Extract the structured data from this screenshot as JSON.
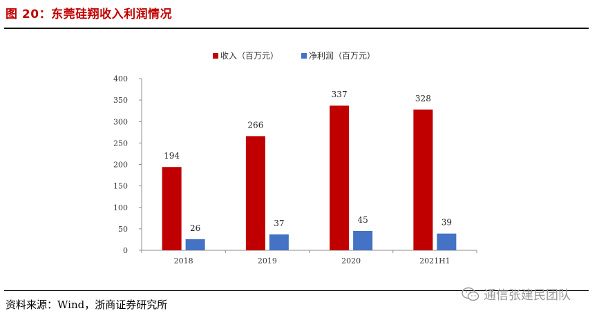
{
  "figure": {
    "title": "图 20：东莞硅翔收入利润情况",
    "source": "资料来源：Wind，浙商证券研究所",
    "watermark": "通信张建民团队",
    "watermark_icon": "wechat-icon"
  },
  "chart_data": {
    "type": "bar",
    "title": "",
    "xlabel": "",
    "ylabel": "",
    "categories": [
      "2018",
      "2019",
      "2020",
      "2021H1"
    ],
    "series": [
      {
        "name": "收入（百万元）",
        "color": "#c00000",
        "values": [
          194,
          266,
          337,
          328
        ]
      },
      {
        "name": "净利润（百万元）",
        "color": "#4472c4",
        "values": [
          26,
          37,
          45,
          39
        ]
      }
    ],
    "ylim": [
      0,
      400
    ],
    "yticks": [
      0,
      50,
      100,
      150,
      200,
      250,
      300,
      350,
      400
    ],
    "legend_position": "top",
    "grid": false,
    "data_labels": true
  }
}
